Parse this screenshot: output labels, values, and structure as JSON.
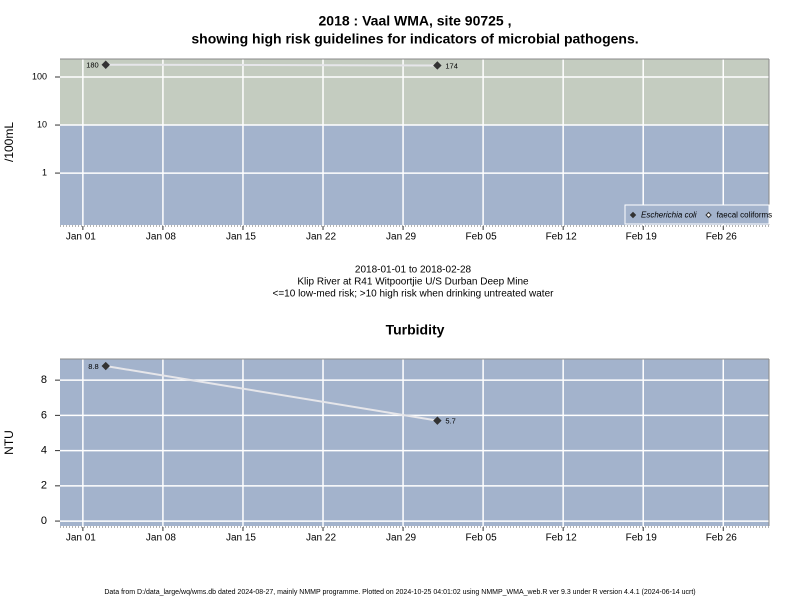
{
  "footer": "Data from D:/data_large/wq/wms.db dated 2024-08-27, mainly NMMP programme. Plotted on 2024-10-25 04:01:02 using NMMP_WMA_web.R ver 9.3 under R version 4.4.1 (2024-06-14 ucrt)",
  "chart_data": [
    {
      "type": "line",
      "title": [
        "2018 : Vaal WMA, site 90725 ,",
        "showing high risk guidelines for indicators of microbial pathogens."
      ],
      "notes": [
        "2018-01-01 to 2018-02-28",
        "Klip River at R41 Witpoortjie U/S Durban Deep Mine",
        "<=10 low-med risk; >10 high risk when drinking untreated water"
      ],
      "y_label": "/100mL",
      "log_scale": true,
      "x": [
        "2018-01-03",
        "2018-02-01"
      ],
      "series": [
        {
          "name": "Escherichia coli",
          "color": "#333333",
          "line_color": "#e6e6ea",
          "marker": "filled",
          "values": [
            180,
            174
          ]
        },
        {
          "name": "faecal coliforms",
          "color": "#333333",
          "marker": "hollow",
          "values": [
            null,
            null
          ]
        }
      ],
      "threshold": 10,
      "band_colors": [
        "#a3b3cc",
        "#c4ccc0"
      ],
      "xlim": [
        "2017-12-30",
        "2018-03-02"
      ],
      "xticks": [
        {
          "value": "2018-01-01",
          "label": "Jan 01"
        },
        {
          "value": "2018-01-08",
          "label": "Jan 08"
        },
        {
          "value": "2018-01-15",
          "label": "Jan 15"
        },
        {
          "value": "2018-01-22",
          "label": "Jan 22"
        },
        {
          "value": "2018-01-29",
          "label": "Jan 29"
        },
        {
          "value": "2018-02-05",
          "label": "Feb 05"
        },
        {
          "value": "2018-02-12",
          "label": "Feb 12"
        },
        {
          "value": "2018-02-19",
          "label": "Feb 19"
        },
        {
          "value": "2018-02-26",
          "label": "Feb 26"
        }
      ],
      "ylim": [
        0.083,
        237
      ],
      "yticks": [
        1,
        10,
        100
      ],
      "grid": true,
      "legend": "bottom-right"
    },
    {
      "type": "line",
      "title": [
        "Turbidity"
      ],
      "y_label": "NTU",
      "log_scale": false,
      "x": [
        "2018-01-03",
        "2018-02-01"
      ],
      "series": [
        {
          "name": "Turbidity",
          "color": "#333333",
          "line_color": "#e6e6ea",
          "marker": "filled",
          "values": [
            8.8,
            5.7
          ]
        }
      ],
      "background": "#a3b3cc",
      "xlim": [
        "2017-12-30",
        "2018-03-02"
      ],
      "xticks": [
        {
          "value": "2018-01-01",
          "label": "Jan 01"
        },
        {
          "value": "2018-01-08",
          "label": "Jan 08"
        },
        {
          "value": "2018-01-15",
          "label": "Jan 15"
        },
        {
          "value": "2018-01-22",
          "label": "Jan 22"
        },
        {
          "value": "2018-01-29",
          "label": "Jan 29"
        },
        {
          "value": "2018-02-05",
          "label": "Feb 05"
        },
        {
          "value": "2018-02-12",
          "label": "Feb 12"
        },
        {
          "value": "2018-02-19",
          "label": "Feb 19"
        },
        {
          "value": "2018-02-26",
          "label": "Feb 26"
        }
      ],
      "ylim": [
        -0.28,
        9.2
      ],
      "yticks": [
        0,
        2,
        4,
        6,
        8
      ],
      "grid": true
    }
  ]
}
